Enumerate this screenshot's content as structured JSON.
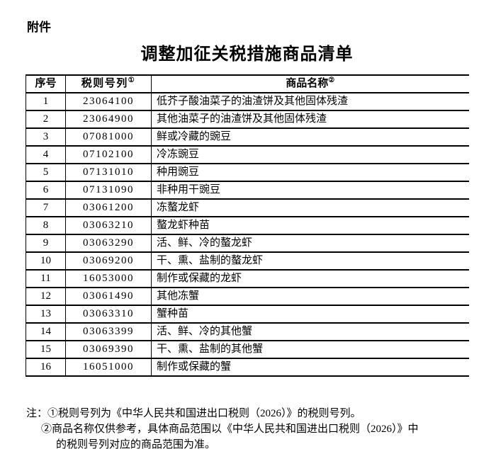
{
  "page": {
    "attachment_label": "附件",
    "title": "调整加征关税措施商品清单"
  },
  "table": {
    "headers": [
      {
        "label": "序号",
        "sup": ""
      },
      {
        "label": "税则号列",
        "sup": "①"
      },
      {
        "label": "商品名称",
        "sup": "②"
      }
    ],
    "rows": [
      {
        "no": "1",
        "code": "23064100",
        "name": "低芥子酸油菜子的油渣饼及其他固体残渣"
      },
      {
        "no": "2",
        "code": "23064900",
        "name": "其他油菜子的油渣饼及其他固体残渣"
      },
      {
        "no": "3",
        "code": "07081000",
        "name": "鲜或冷藏的豌豆"
      },
      {
        "no": "4",
        "code": "07102100",
        "name": "冷冻豌豆"
      },
      {
        "no": "5",
        "code": "07131010",
        "name": "种用豌豆"
      },
      {
        "no": "6",
        "code": "07131090",
        "name": "非种用干豌豆"
      },
      {
        "no": "7",
        "code": "03061200",
        "name": "冻螯龙虾"
      },
      {
        "no": "8",
        "code": "03063210",
        "name": "螯龙虾种苗"
      },
      {
        "no": "9",
        "code": "03063290",
        "name": "活、鲜、冷的螯龙虾"
      },
      {
        "no": "10",
        "code": "03069200",
        "name": "干、熏、盐制的螯龙虾"
      },
      {
        "no": "11",
        "code": "16053000",
        "name": "制作或保藏的龙虾"
      },
      {
        "no": "12",
        "code": "03061490",
        "name": "其他冻蟹"
      },
      {
        "no": "13",
        "code": "03063310",
        "name": "蟹种苗"
      },
      {
        "no": "14",
        "code": "03063399",
        "name": "活、鲜、冷的其他蟹"
      },
      {
        "no": "15",
        "code": "03069390",
        "name": "干、熏、盐制的其他蟹"
      },
      {
        "no": "16",
        "code": "16051000",
        "name": "制作或保藏的蟹"
      }
    ]
  },
  "notes": {
    "label": "注：",
    "line1": "①税则号列为《中华人民共和国进出口税则（2026）》的税则号列。",
    "line2": "②商品名称仅供参考，具体商品范围以《中华人民共和国进出口税则（2026）》中",
    "line3": "的税则号列对应的商品范围为准。"
  },
  "colors": {
    "text": "#000000",
    "background": "#ffffff",
    "table_border": "#000000"
  }
}
